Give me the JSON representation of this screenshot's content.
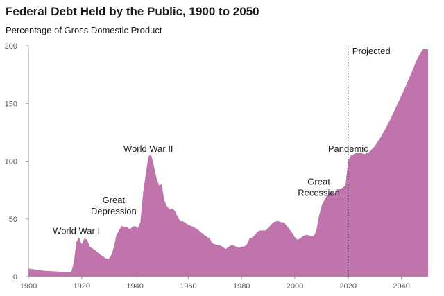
{
  "chart_data": {
    "type": "area",
    "title": "Federal Debt Held by the Public, 1900 to 2050",
    "subtitle": "Percentage of Gross Domestic Product",
    "xlabel": "",
    "ylabel": "",
    "xlim": [
      1900,
      2050
    ],
    "ylim": [
      0,
      200
    ],
    "x_ticks": [
      1900,
      1920,
      1940,
      1960,
      1980,
      2000,
      2020,
      2040
    ],
    "y_ticks": [
      0,
      50,
      100,
      150,
      200
    ],
    "fill_color": "#c074ac",
    "grid": false,
    "projection_start": 2020,
    "projection_label": "Projected",
    "series": [
      {
        "x": [
          1900,
          1903,
          1906,
          1910,
          1914,
          1916,
          1917,
          1918,
          1919,
          1920,
          1921,
          1922,
          1923,
          1925,
          1927,
          1929,
          1930,
          1931,
          1932,
          1933,
          1934,
          1935,
          1936,
          1937,
          1938,
          1939,
          1940,
          1941,
          1942,
          1943,
          1944,
          1945,
          1946,
          1947,
          1948,
          1949,
          1950,
          1951,
          1952,
          1953,
          1954,
          1955,
          1956,
          1957,
          1958,
          1960,
          1962,
          1964,
          1966,
          1968,
          1969,
          1970,
          1972,
          1974,
          1976,
          1977,
          1978,
          1979,
          1980,
          1981,
          1982,
          1983,
          1984,
          1985,
          1986,
          1987,
          1988,
          1989,
          1990,
          1991,
          1992,
          1993,
          1994,
          1995,
          1996,
          1997,
          1998,
          1999,
          2000,
          2001,
          2002,
          2003,
          2004,
          2005,
          2006,
          2007,
          2008,
          2009,
          2010,
          2011,
          2012,
          2013,
          2014,
          2015,
          2016,
          2017,
          2018,
          2019,
          2020,
          2021,
          2022,
          2023,
          2024,
          2025,
          2026,
          2027,
          2028,
          2030,
          2032,
          2034,
          2036,
          2038,
          2040,
          2042,
          2044,
          2046,
          2048,
          2050
        ],
        "values": [
          7,
          6,
          5,
          4.5,
          4,
          3.5,
          12,
          30,
          34,
          28,
          33,
          32,
          26,
          23,
          19,
          16,
          15,
          18,
          25,
          36,
          40,
          44,
          43,
          43,
          41,
          43,
          44,
          42,
          47,
          72,
          88,
          104,
          106,
          97,
          86,
          79,
          80,
          66,
          61,
          58,
          59,
          57,
          52,
          48,
          48,
          45,
          43,
          40,
          36,
          33,
          29,
          28,
          27,
          24,
          27,
          27,
          26,
          25,
          26,
          26,
          28,
          33,
          34,
          36,
          39,
          40,
          40,
          40,
          42,
          45,
          47,
          48,
          48,
          47,
          47,
          44,
          41,
          38,
          34,
          32,
          33,
          35,
          36,
          36,
          35,
          35,
          39,
          52,
          61,
          66,
          70,
          72,
          74,
          72,
          76,
          76,
          77,
          79,
          100,
          105,
          106,
          107,
          107,
          107,
          106,
          107,
          108,
          113,
          120,
          128,
          137,
          147,
          157,
          167,
          178,
          189,
          197,
          197
        ]
      }
    ],
    "annotations": [
      {
        "lines": [
          "World War I"
        ],
        "x": 1918,
        "y": 37
      },
      {
        "lines": [
          "Great",
          "Depression"
        ],
        "x": 1932,
        "y": 54
      },
      {
        "lines": [
          "World War II"
        ],
        "x": 1945,
        "y": 108
      },
      {
        "lines": [
          "Great",
          "Recession"
        ],
        "x": 2009,
        "y": 70
      },
      {
        "lines": [
          "Pandemic"
        ],
        "x": 2020,
        "y": 108
      }
    ]
  }
}
